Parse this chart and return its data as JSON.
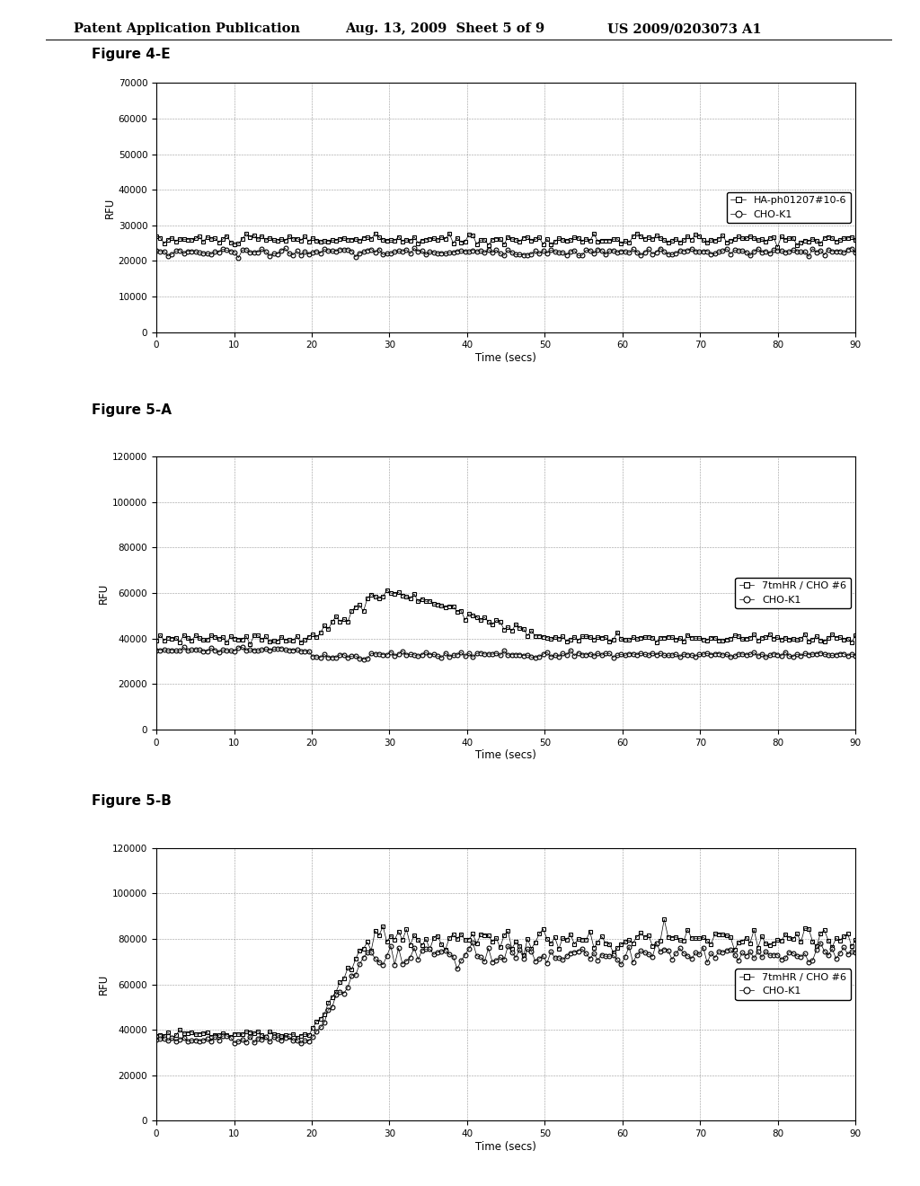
{
  "header_left": "Patent Application Publication",
  "header_mid": "Aug. 13, 2009  Sheet 5 of 9",
  "header_right": "US 2009/0203073 A1",
  "fig4e_title": "Figure 4-E",
  "fig4e_ylabel": "RFU",
  "fig4e_xlabel": "Time (secs)",
  "fig4e_ylim": [
    0,
    70000
  ],
  "fig4e_yticks": [
    0,
    10000,
    20000,
    30000,
    40000,
    50000,
    60000,
    70000
  ],
  "fig4e_xlim": [
    0,
    90
  ],
  "fig4e_xticks": [
    0,
    10,
    20,
    30,
    40,
    50,
    60,
    70,
    80,
    90
  ],
  "fig4e_legend1": "HA-ph01207#10-6",
  "fig4e_legend2": "CHO-K1",
  "fig4e_ha_base": 26000,
  "fig4e_cho_base": 22500,
  "fig5a_title": "Figure 5-A",
  "fig5a_ylabel": "RFU",
  "fig5a_xlabel": "Time (secs)",
  "fig5a_ylim": [
    0,
    120000
  ],
  "fig5a_yticks": [
    0,
    20000,
    40000,
    60000,
    80000,
    100000,
    120000
  ],
  "fig5a_xlim": [
    0,
    90
  ],
  "fig5a_xticks": [
    0,
    10,
    20,
    30,
    40,
    50,
    60,
    70,
    80,
    90
  ],
  "fig5a_legend1": "7tmHR / CHO #6",
  "fig5a_legend2": "CHO-K1",
  "fig5a_7tm_base": 40000,
  "fig5a_7tm_peak": 62000,
  "fig5a_7tm_after": 40000,
  "fig5a_cho_base": 35000,
  "fig5b_title": "Figure 5-B",
  "fig5b_ylabel": "RFU",
  "fig5b_xlabel": "Time (secs)",
  "fig5b_ylim": [
    0,
    120000
  ],
  "fig5b_yticks": [
    0,
    20000,
    40000,
    60000,
    80000,
    100000,
    120000
  ],
  "fig5b_xlim": [
    0,
    90
  ],
  "fig5b_xticks": [
    0,
    10,
    20,
    30,
    40,
    50,
    60,
    70,
    80,
    90
  ],
  "fig5b_legend1": "7tmHR / CHO #6",
  "fig5b_legend2": "CHO-K1",
  "fig5b_7tm_base": 38000,
  "fig5b_7tm_after": 80000,
  "fig5b_cho_base": 36000,
  "fig5b_cho_after": 73000,
  "fig5b_jump_time": 20
}
